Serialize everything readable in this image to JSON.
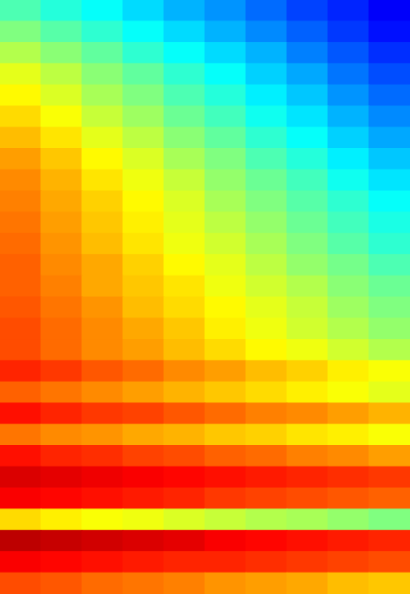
{
  "chart_data": {
    "type": "heatmap",
    "tick_labels": false,
    "zlim": [
      0,
      1
    ],
    "cells": [
      [
        0.45,
        0.41,
        0.38,
        0.34,
        0.3,
        0.27,
        0.23,
        0.19,
        0.16,
        0.12
      ],
      [
        0.5,
        0.46,
        0.42,
        0.38,
        0.34,
        0.3,
        0.26,
        0.22,
        0.18,
        0.14
      ],
      [
        0.55,
        0.51,
        0.47,
        0.42,
        0.38,
        0.34,
        0.3,
        0.25,
        0.21,
        0.17
      ],
      [
        0.6,
        0.56,
        0.51,
        0.47,
        0.42,
        0.38,
        0.33,
        0.29,
        0.24,
        0.2
      ],
      [
        0.63,
        0.59,
        0.54,
        0.5,
        0.45,
        0.41,
        0.36,
        0.32,
        0.27,
        0.23
      ],
      [
        0.66,
        0.62,
        0.57,
        0.53,
        0.48,
        0.44,
        0.39,
        0.35,
        0.3,
        0.26
      ],
      [
        0.69,
        0.65,
        0.6,
        0.56,
        0.51,
        0.47,
        0.42,
        0.38,
        0.33,
        0.29
      ],
      [
        0.72,
        0.68,
        0.63,
        0.59,
        0.54,
        0.5,
        0.45,
        0.41,
        0.36,
        0.32
      ],
      [
        0.74,
        0.7,
        0.65,
        0.61,
        0.57,
        0.52,
        0.48,
        0.44,
        0.39,
        0.35
      ],
      [
        0.75,
        0.71,
        0.67,
        0.63,
        0.59,
        0.54,
        0.5,
        0.46,
        0.42,
        0.38
      ],
      [
        0.76,
        0.72,
        0.68,
        0.64,
        0.6,
        0.56,
        0.52,
        0.48,
        0.44,
        0.4
      ],
      [
        0.77,
        0.73,
        0.69,
        0.65,
        0.61,
        0.58,
        0.54,
        0.5,
        0.46,
        0.42
      ],
      [
        0.78,
        0.74,
        0.71,
        0.67,
        0.63,
        0.6,
        0.56,
        0.52,
        0.49,
        0.45
      ],
      [
        0.78,
        0.75,
        0.71,
        0.68,
        0.65,
        0.61,
        0.58,
        0.55,
        0.51,
        0.48
      ],
      [
        0.79,
        0.76,
        0.73,
        0.69,
        0.66,
        0.63,
        0.6,
        0.57,
        0.53,
        0.5
      ],
      [
        0.8,
        0.77,
        0.74,
        0.71,
        0.68,
        0.64,
        0.61,
        0.58,
        0.55,
        0.52
      ],
      [
        0.8,
        0.77,
        0.74,
        0.72,
        0.69,
        0.66,
        0.63,
        0.61,
        0.58,
        0.55
      ],
      [
        0.84,
        0.82,
        0.79,
        0.77,
        0.74,
        0.72,
        0.69,
        0.67,
        0.64,
        0.62
      ],
      [
        0.78,
        0.76,
        0.74,
        0.72,
        0.7,
        0.68,
        0.66,
        0.64,
        0.62,
        0.6
      ],
      [
        0.86,
        0.84,
        0.82,
        0.81,
        0.79,
        0.77,
        0.75,
        0.74,
        0.72,
        0.7
      ],
      [
        0.76,
        0.74,
        0.73,
        0.71,
        0.7,
        0.68,
        0.67,
        0.65,
        0.64,
        0.62
      ],
      [
        0.86,
        0.84,
        0.83,
        0.81,
        0.8,
        0.78,
        0.77,
        0.75,
        0.74,
        0.72
      ],
      [
        0.91,
        0.9,
        0.89,
        0.88,
        0.87,
        0.86,
        0.85,
        0.84,
        0.83,
        0.82
      ],
      [
        0.88,
        0.87,
        0.86,
        0.85,
        0.84,
        0.82,
        0.81,
        0.8,
        0.79,
        0.78
      ],
      [
        0.66,
        0.64,
        0.62,
        0.61,
        0.59,
        0.57,
        0.55,
        0.54,
        0.52,
        0.5
      ],
      [
        0.94,
        0.93,
        0.92,
        0.91,
        0.9,
        0.88,
        0.87,
        0.86,
        0.85,
        0.84
      ],
      [
        0.88,
        0.87,
        0.86,
        0.85,
        0.84,
        0.84,
        0.83,
        0.82,
        0.81,
        0.8
      ],
      [
        0.8,
        0.79,
        0.77,
        0.76,
        0.75,
        0.73,
        0.72,
        0.71,
        0.69,
        0.68
      ]
    ]
  }
}
